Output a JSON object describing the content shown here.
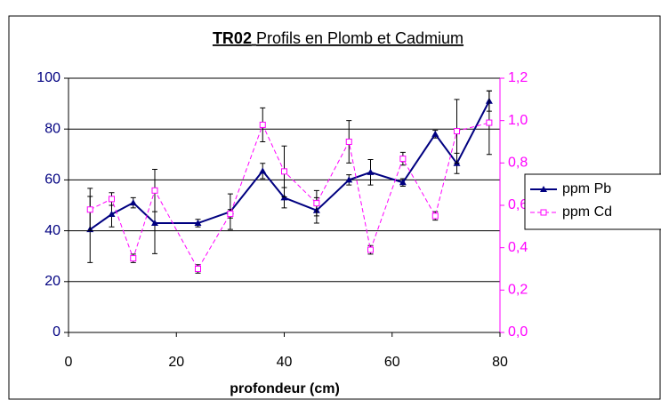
{
  "chart_data": {
    "type": "line",
    "title": [
      "TR02",
      "Profils en Plomb et Cadmium"
    ],
    "xlabel": "profondeur (cm)",
    "x": [
      4,
      8,
      12,
      16,
      24,
      30,
      36,
      40,
      46,
      52,
      56,
      62,
      68,
      72,
      78
    ],
    "series": [
      {
        "name": "ppm Pb",
        "color": "#000080",
        "axis": "y",
        "values": [
          40.5,
          46.5,
          51,
          43,
          43,
          47.5,
          63.5,
          53,
          48,
          60,
          63,
          59,
          78,
          66.5,
          91
        ],
        "errors": [
          13,
          5,
          2,
          12,
          1.5,
          7,
          3,
          4,
          5,
          2,
          5,
          1.5,
          1.5,
          4,
          4
        ]
      },
      {
        "name": "ppm Cd",
        "color": "#ff00ff",
        "axis": "y2",
        "values": [
          0.58,
          0.63,
          0.35,
          0.67,
          0.3,
          0.56,
          0.98,
          0.76,
          0.61,
          0.9,
          0.39,
          0.82,
          0.55,
          0.95,
          0.99
        ],
        "errors": [
          0.1,
          0.03,
          0.02,
          0.1,
          0.02,
          0.02,
          0.08,
          0.12,
          0.06,
          0.1,
          0.02,
          0.03,
          0.02,
          0.15,
          0.15
        ]
      }
    ],
    "xlim": [
      0,
      80
    ],
    "xticks": [
      0,
      20,
      40,
      60,
      80
    ],
    "ylim": [
      0,
      100
    ],
    "yticks": [
      0,
      20,
      40,
      60,
      80,
      100
    ],
    "y2lim": [
      0,
      1.2
    ],
    "y2ticks": [
      {
        "value": 0,
        "label": "0,0"
      },
      {
        "value": 0.2,
        "label": "0,2"
      },
      {
        "value": 0.4,
        "label": "0,4"
      },
      {
        "value": 0.6,
        "label": "0,6"
      },
      {
        "value": 0.8,
        "label": "0,8"
      },
      {
        "value": 1.0,
        "label": "1,0"
      },
      {
        "value": 1.2,
        "label": "1,2"
      }
    ],
    "grid": true,
    "legend": "right"
  }
}
